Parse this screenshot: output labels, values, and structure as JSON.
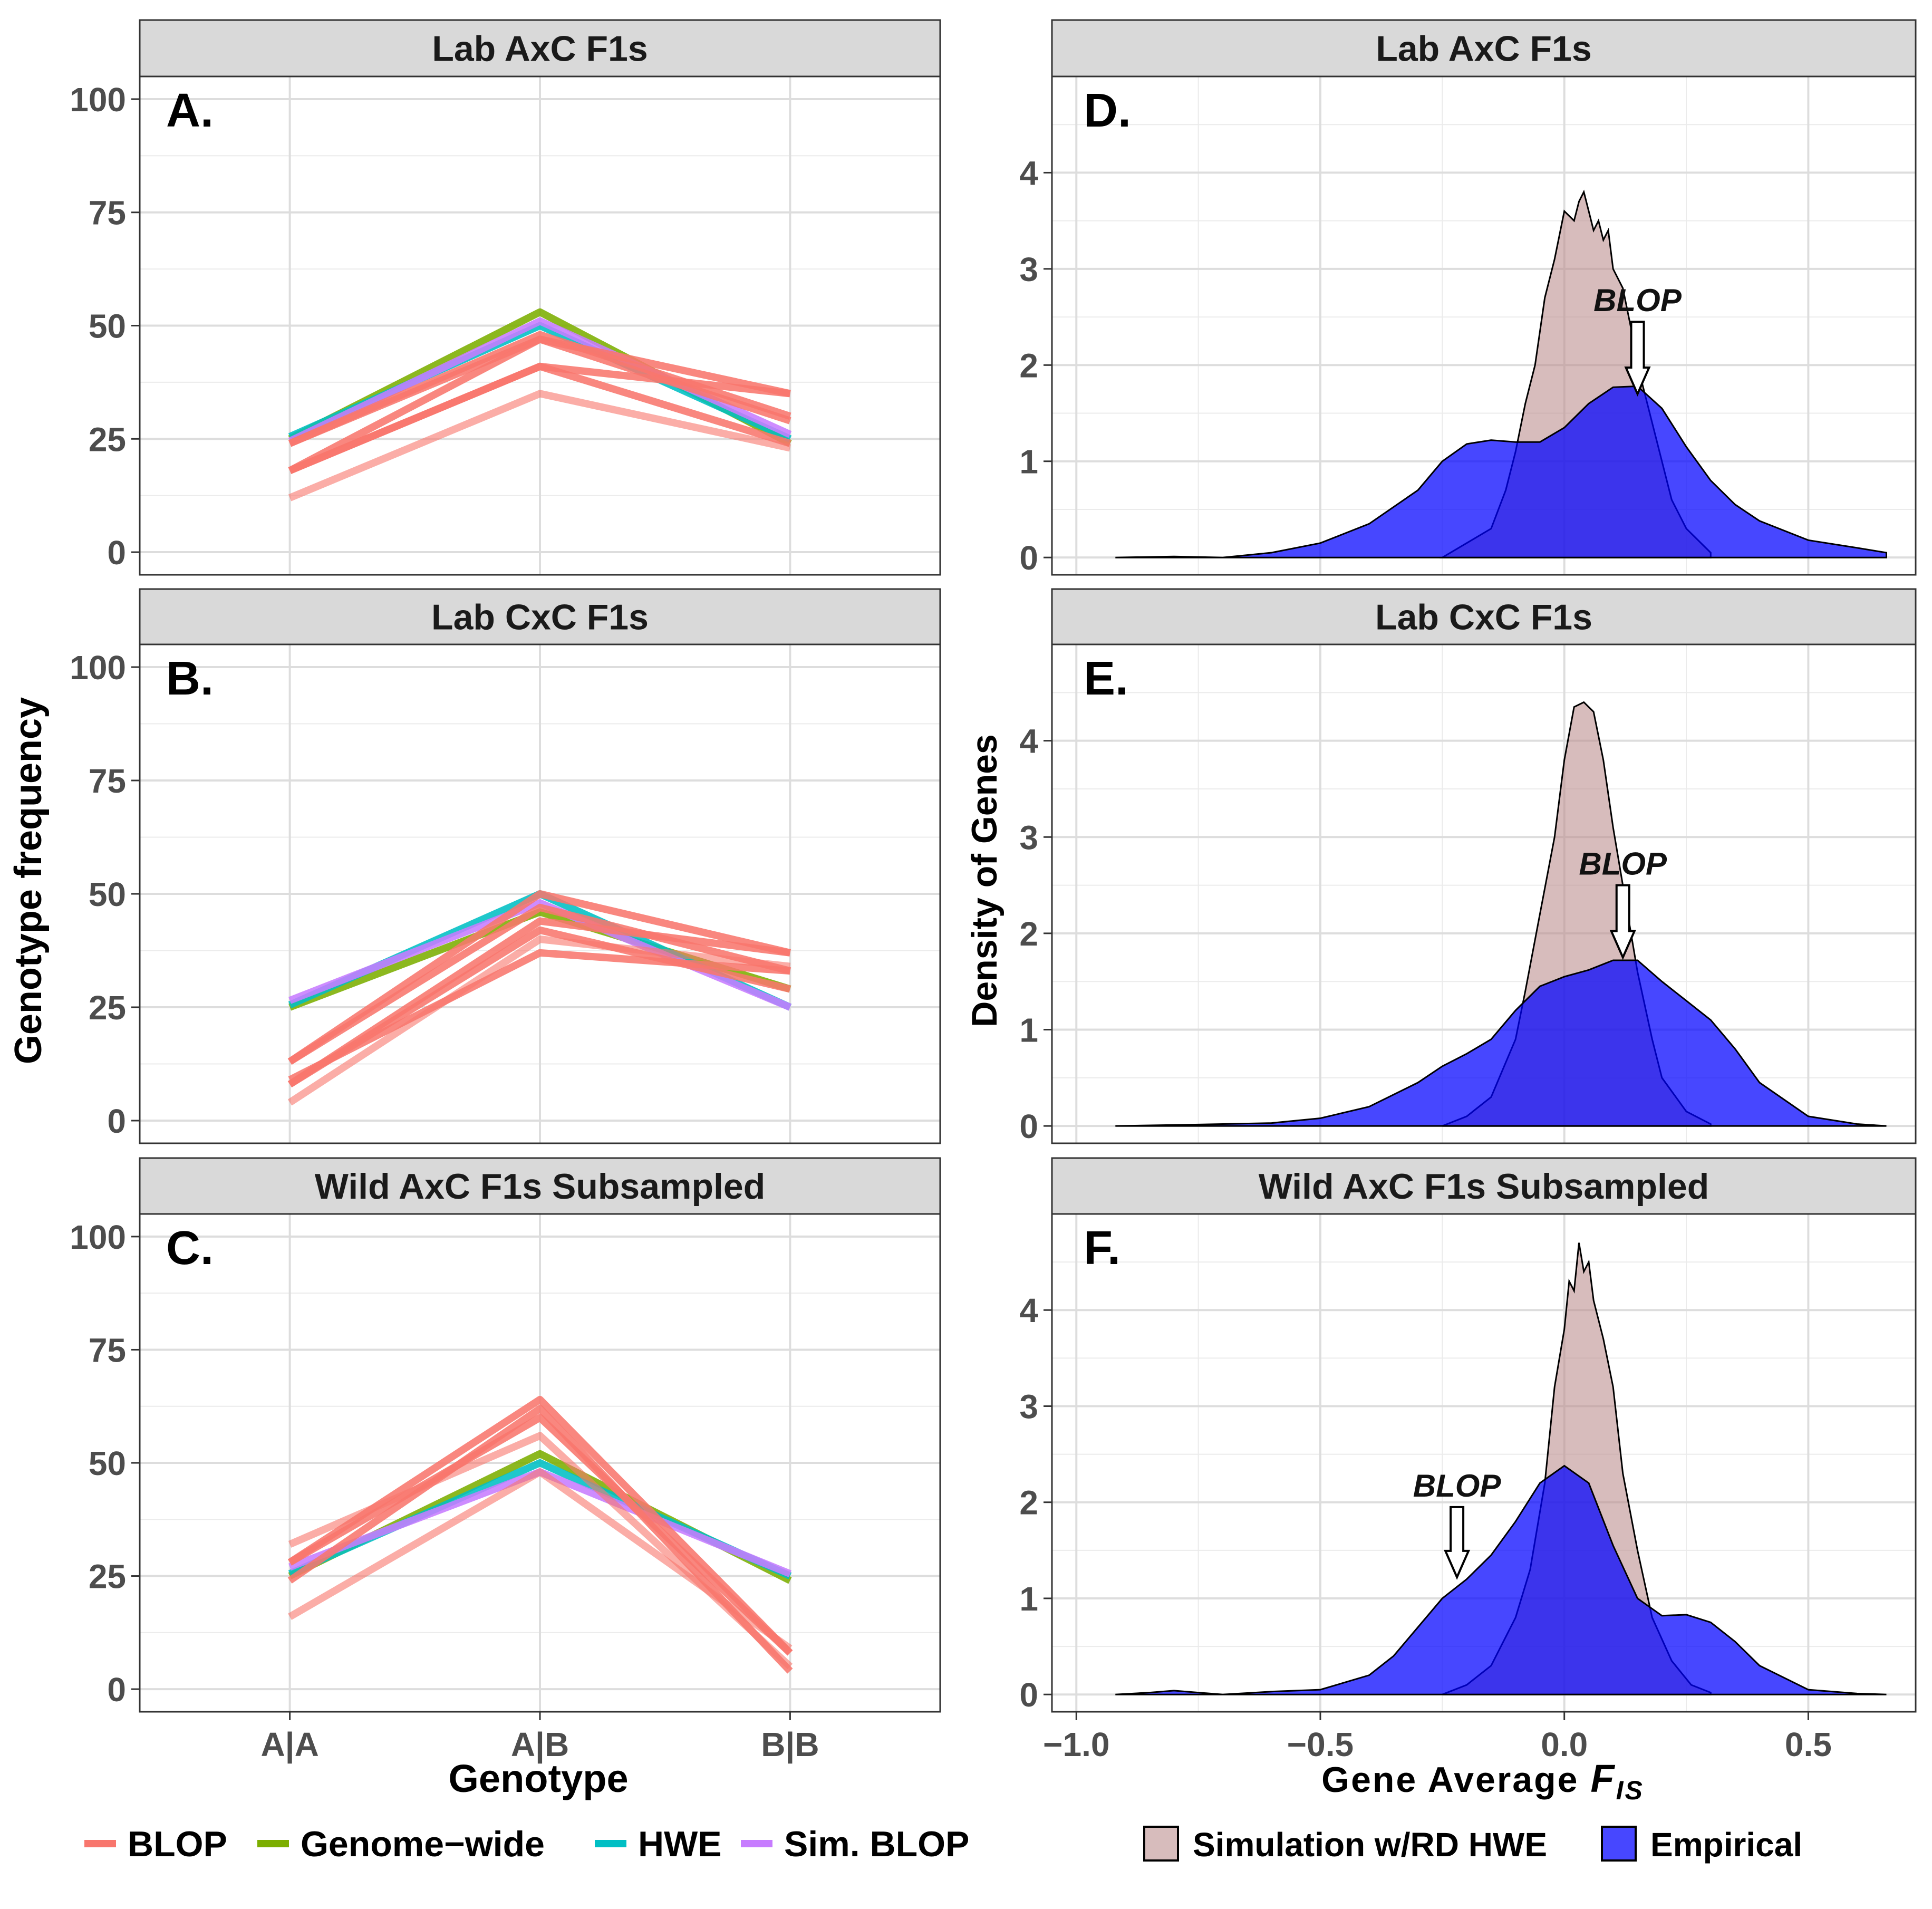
{
  "figure": {
    "left_ylabel": "Genotype frequency",
    "left_xlabel": "Genotype",
    "right_ylabel": "Density of Genes",
    "right_xlabel_main": "Gene Average ",
    "right_xlabel_italic": "F",
    "right_xlabel_sub": "IS",
    "left_legend": [
      {
        "label": "BLOP",
        "color": "#F8766D"
      },
      {
        "label": "Genome−wide",
        "color": "#7CAE00"
      },
      {
        "label": "HWE",
        "color": "#00BFC4"
      },
      {
        "label": "Sim. BLOP",
        "color": "#C77CFF"
      }
    ],
    "right_legend": [
      {
        "label": "Simulation w/RD HWE",
        "color": "#BC8F8F"
      },
      {
        "label": "Empirical",
        "color": "#0000FF"
      }
    ]
  },
  "chart_data": [
    {
      "type": "line",
      "panel_letter": "A.",
      "strip": "Lab AxC F1s",
      "categories": [
        "A|A",
        "A|B",
        "B|B"
      ],
      "ylim": [
        -5,
        105
      ],
      "yticks": [
        0,
        25,
        50,
        75,
        100
      ],
      "series": [
        {
          "name": "Genome−wide",
          "color": "#7CAE00",
          "values": [
            25,
            53,
            24
          ]
        },
        {
          "name": "HWE",
          "color": "#00BFC4",
          "values": [
            25.5,
            50,
            25
          ]
        },
        {
          "name": "Sim. BLOP",
          "color": "#C77CFF",
          "values": [
            24.5,
            51,
            26
          ]
        },
        {
          "name": "BLOP",
          "color": "#F8766D",
          "values": [
            24,
            47,
            35
          ]
        },
        {
          "name": "BLOP",
          "color": "#F8766D",
          "values": [
            18,
            41,
            35
          ]
        },
        {
          "name": "BLOP",
          "color": "#F8766D",
          "values": [
            24,
            48,
            30
          ]
        },
        {
          "name": "BLOP",
          "color": "#F8766D",
          "values": [
            18,
            47,
            29
          ]
        },
        {
          "name": "BLOP",
          "color": "#F8766D",
          "values": [
            18,
            41,
            24
          ]
        },
        {
          "name": "BLOP",
          "color": "#F8766D",
          "values": [
            12,
            35,
            23
          ],
          "alpha": 0.6
        }
      ]
    },
    {
      "type": "line",
      "panel_letter": "B.",
      "strip": "Lab CxC F1s",
      "categories": [
        "A|A",
        "A|B",
        "B|B"
      ],
      "ylim": [
        -5,
        105
      ],
      "yticks": [
        0,
        25,
        50,
        75,
        100
      ],
      "series": [
        {
          "name": "Genome−wide",
          "color": "#7CAE00",
          "values": [
            25,
            46,
            29
          ]
        },
        {
          "name": "HWE",
          "color": "#00BFC4",
          "values": [
            25.5,
            50,
            25
          ]
        },
        {
          "name": "Sim. BLOP",
          "color": "#C77CFF",
          "values": [
            26.5,
            48,
            25
          ]
        },
        {
          "name": "BLOP",
          "color": "#F8766D",
          "values": [
            13,
            50,
            37
          ]
        },
        {
          "name": "BLOP",
          "color": "#F8766D",
          "values": [
            8,
            44,
            37
          ]
        },
        {
          "name": "BLOP",
          "color": "#F8766D",
          "values": [
            13,
            47,
            33
          ]
        },
        {
          "name": "BLOP",
          "color": "#F8766D",
          "values": [
            8,
            42,
            29
          ]
        },
        {
          "name": "BLOP",
          "color": "#F8766D",
          "values": [
            9,
            37,
            33
          ]
        },
        {
          "name": "BLOP",
          "color": "#F8766D",
          "values": [
            4,
            40,
            34
          ],
          "alpha": 0.6
        }
      ]
    },
    {
      "type": "line",
      "panel_letter": "C.",
      "strip": "Wild AxC F1s Subsampled",
      "categories": [
        "A|A",
        "A|B",
        "B|B"
      ],
      "ylim": [
        -5,
        105
      ],
      "yticks": [
        0,
        25,
        50,
        75,
        100
      ],
      "series": [
        {
          "name": "Genome−wide",
          "color": "#7CAE00",
          "values": [
            25,
            52,
            24
          ]
        },
        {
          "name": "HWE",
          "color": "#00BFC4",
          "values": [
            25.5,
            50,
            25
          ]
        },
        {
          "name": "Sim. BLOP",
          "color": "#C77CFF",
          "values": [
            27,
            48,
            25.5
          ]
        },
        {
          "name": "BLOP",
          "color": "#F8766D",
          "values": [
            28,
            64,
            8
          ]
        },
        {
          "name": "BLOP",
          "color": "#F8766D",
          "values": [
            24,
            62,
            4
          ]
        },
        {
          "name": "BLOP",
          "color": "#F8766D",
          "values": [
            28,
            60,
            8
          ]
        },
        {
          "name": "BLOP",
          "color": "#F8766D",
          "values": [
            32,
            56,
            5
          ],
          "alpha": 0.6
        },
        {
          "name": "BLOP",
          "color": "#F8766D",
          "values": [
            16,
            48,
            9
          ],
          "alpha": 0.6
        }
      ]
    },
    {
      "type": "area",
      "panel_letter": "D.",
      "strip": "Lab AxC F1s",
      "xlim": [
        -1.05,
        0.72
      ],
      "ylim": [
        -0.18,
        5.0
      ],
      "xticks": [
        -1.0,
        -0.5,
        0.0,
        0.5
      ],
      "yticks": [
        0,
        1,
        2,
        3,
        4
      ],
      "series": [
        {
          "name": "Empirical",
          "color": "#0000FF",
          "x": [
            -0.92,
            -0.8,
            -0.7,
            -0.6,
            -0.5,
            -0.4,
            -0.3,
            -0.25,
            -0.2,
            -0.15,
            -0.1,
            -0.05,
            0.0,
            0.05,
            0.1,
            0.15,
            0.2,
            0.25,
            0.3,
            0.35,
            0.4,
            0.5,
            0.6,
            0.66
          ],
          "y": [
            0,
            0.01,
            0.0,
            0.05,
            0.15,
            0.35,
            0.7,
            1.0,
            1.18,
            1.22,
            1.2,
            1.2,
            1.35,
            1.6,
            1.77,
            1.78,
            1.55,
            1.15,
            0.8,
            0.55,
            0.38,
            0.18,
            0.1,
            0.05
          ]
        },
        {
          "name": "Simulation w/RD HWE",
          "color": "#BC8F8F",
          "x": [
            -0.25,
            -0.2,
            -0.15,
            -0.12,
            -0.1,
            -0.08,
            -0.06,
            -0.04,
            -0.02,
            0.0,
            0.02,
            0.03,
            0.04,
            0.05,
            0.06,
            0.07,
            0.08,
            0.09,
            0.1,
            0.12,
            0.14,
            0.16,
            0.18,
            0.2,
            0.22,
            0.25,
            0.3
          ],
          "y": [
            0,
            0.15,
            0.3,
            0.7,
            1.1,
            1.6,
            2.0,
            2.7,
            3.1,
            3.6,
            3.5,
            3.7,
            3.8,
            3.6,
            3.4,
            3.5,
            3.3,
            3.4,
            3.0,
            2.8,
            2.3,
            1.8,
            1.4,
            1.0,
            0.6,
            0.3,
            0.05
          ]
        }
      ],
      "annotation": {
        "label": "BLOP",
        "x": 0.15,
        "y_top": 2.45,
        "y_tip": 1.7
      }
    },
    {
      "type": "area",
      "panel_letter": "E.",
      "strip": "Lab CxC F1s",
      "xlim": [
        -1.05,
        0.72
      ],
      "ylim": [
        -0.18,
        5.0
      ],
      "xticks": [
        -1.0,
        -0.5,
        0.0,
        0.5
      ],
      "yticks": [
        0,
        1,
        2,
        3,
        4
      ],
      "series": [
        {
          "name": "Empirical",
          "color": "#0000FF",
          "x": [
            -0.92,
            -0.8,
            -0.7,
            -0.6,
            -0.5,
            -0.4,
            -0.3,
            -0.25,
            -0.2,
            -0.15,
            -0.1,
            -0.05,
            0.0,
            0.05,
            0.1,
            0.15,
            0.2,
            0.25,
            0.3,
            0.35,
            0.4,
            0.5,
            0.6,
            0.66
          ],
          "y": [
            0,
            0.01,
            0.02,
            0.03,
            0.08,
            0.2,
            0.45,
            0.62,
            0.75,
            0.9,
            1.2,
            1.45,
            1.55,
            1.62,
            1.72,
            1.72,
            1.5,
            1.3,
            1.1,
            0.8,
            0.45,
            0.1,
            0.02,
            0.0
          ]
        },
        {
          "name": "Simulation w/RD HWE",
          "color": "#BC8F8F",
          "x": [
            -0.25,
            -0.2,
            -0.15,
            -0.1,
            -0.08,
            -0.05,
            -0.02,
            0.0,
            0.02,
            0.04,
            0.06,
            0.08,
            0.1,
            0.12,
            0.15,
            0.18,
            0.2,
            0.25,
            0.3
          ],
          "y": [
            0,
            0.1,
            0.3,
            0.9,
            1.4,
            2.2,
            3.0,
            3.8,
            4.35,
            4.4,
            4.3,
            3.8,
            3.1,
            2.5,
            1.6,
            0.9,
            0.5,
            0.15,
            0.02
          ]
        }
      ],
      "annotation": {
        "label": "BLOP",
        "x": 0.12,
        "y_top": 2.5,
        "y_tip": 1.75
      }
    },
    {
      "type": "area",
      "panel_letter": "F.",
      "strip": "Wild AxC F1s Subsampled",
      "xlim": [
        -1.05,
        0.72
      ],
      "ylim": [
        -0.18,
        5.0
      ],
      "xticks": [
        -1.0,
        -0.5,
        0.0,
        0.5
      ],
      "yticks": [
        0,
        1,
        2,
        3,
        4
      ],
      "series": [
        {
          "name": "Empirical",
          "color": "#0000FF",
          "x": [
            -0.92,
            -0.85,
            -0.8,
            -0.75,
            -0.7,
            -0.6,
            -0.5,
            -0.4,
            -0.35,
            -0.3,
            -0.25,
            -0.2,
            -0.15,
            -0.1,
            -0.05,
            0.0,
            0.05,
            0.1,
            0.15,
            0.2,
            0.25,
            0.3,
            0.35,
            0.4,
            0.5,
            0.6,
            0.66
          ],
          "y": [
            0,
            0.02,
            0.04,
            0.02,
            0.0,
            0.03,
            0.05,
            0.2,
            0.4,
            0.7,
            1.0,
            1.2,
            1.45,
            1.8,
            2.2,
            2.38,
            2.2,
            1.55,
            1.0,
            0.82,
            0.83,
            0.75,
            0.55,
            0.3,
            0.05,
            0.01,
            0.0
          ]
        },
        {
          "name": "Simulation w/RD HWE",
          "color": "#BC8F8F",
          "x": [
            -0.25,
            -0.2,
            -0.15,
            -0.1,
            -0.07,
            -0.04,
            -0.02,
            0.0,
            0.01,
            0.02,
            0.03,
            0.04,
            0.05,
            0.06,
            0.08,
            0.1,
            0.12,
            0.15,
            0.18,
            0.22,
            0.26,
            0.3
          ],
          "y": [
            0,
            0.1,
            0.3,
            0.8,
            1.3,
            2.2,
            3.2,
            3.8,
            4.3,
            4.2,
            4.7,
            4.4,
            4.5,
            4.1,
            3.7,
            3.2,
            2.3,
            1.5,
            0.8,
            0.35,
            0.1,
            0.02
          ]
        }
      ],
      "annotation": {
        "label": "BLOP",
        "x": -0.22,
        "y_top": 1.95,
        "y_tip": 1.22
      }
    }
  ]
}
